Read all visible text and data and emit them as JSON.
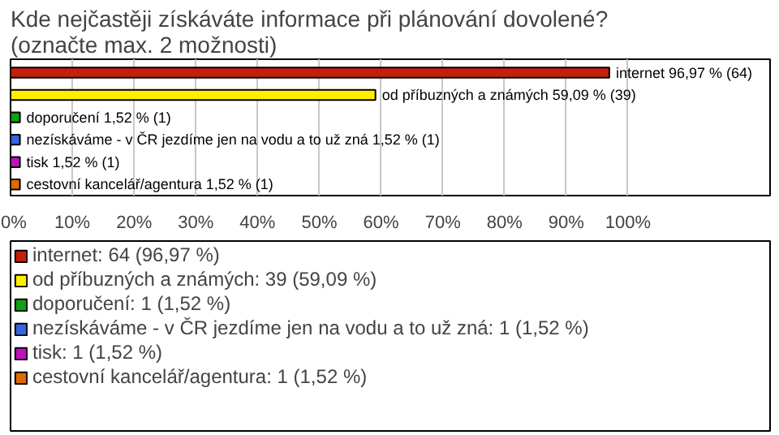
{
  "chart_data": {
    "type": "bar",
    "orientation": "horizontal",
    "stacked": true,
    "title": "Kde nejčastěji získáváte informace při plánování dovolené? (označte max. 2 možnosti)",
    "categories": [
      null,
      null,
      null,
      null,
      null,
      null
    ],
    "xlim": [
      0,
      123
    ],
    "xticks": [
      {
        "value": 0,
        "label": "0%"
      },
      {
        "value": 10,
        "label": "10%"
      },
      {
        "value": 20,
        "label": "20%"
      },
      {
        "value": 30,
        "label": "30%"
      },
      {
        "value": 40,
        "label": "40%"
      },
      {
        "value": 50,
        "label": "50%"
      },
      {
        "value": 60,
        "label": "60%"
      },
      {
        "value": 70,
        "label": "70%"
      },
      {
        "value": 80,
        "label": "80%"
      },
      {
        "value": 90,
        "label": "90%"
      },
      {
        "value": 100,
        "label": "100%"
      }
    ],
    "grid": "x",
    "legend": "bottom",
    "series": [
      {
        "name": "internet: 64 (96,97 %)",
        "color": "#c4200c",
        "values": [
          96.97,
          null,
          null,
          null,
          null,
          null
        ],
        "value_labels": [
          "internet 96,97 % (64)",
          null,
          null,
          null,
          null,
          null
        ]
      },
      {
        "name": "od příbuzných a známých: 39 (59,09 %)",
        "color": "#ffee00",
        "values": [
          null,
          59.09,
          null,
          null,
          null,
          null
        ],
        "value_labels": [
          null,
          "od příbuzných a známých 59,09 % (39)",
          null,
          null,
          null,
          null
        ]
      },
      {
        "name": "doporučení: 1 (1,52 %)",
        "color": "#10a010",
        "values": [
          null,
          null,
          1.52,
          null,
          null,
          null
        ],
        "value_labels": [
          null,
          null,
          "doporučení 1,52 % (1)",
          null,
          null,
          null
        ]
      },
      {
        "name": "nezískáváme - v ČR jezdíme jen na vodu a to už zná: 1 (1,52 %)",
        "color": "#3366e0",
        "values": [
          null,
          null,
          null,
          1.52,
          null,
          null
        ],
        "value_labels": [
          null,
          null,
          null,
          "nezískáváme - v ČR jezdíme jen na vodu a to už zná 1,52 % (1)",
          null,
          null
        ]
      },
      {
        "name": "tisk: 1 (1,52 %)",
        "color": "#c010c0",
        "values": [
          null,
          null,
          null,
          null,
          1.52,
          null
        ],
        "value_labels": [
          null,
          null,
          null,
          null,
          "tisk 1,52 % (1)",
          null
        ]
      },
      {
        "name": "cestovní kancelář/agentura: 1 (1,52 %)",
        "color": "#e06a00",
        "values": [
          null,
          null,
          null,
          null,
          null,
          1.52
        ],
        "value_labels": [
          null,
          null,
          null,
          null,
          null,
          "cestovní kancelář/agentura 1,52 % (1)"
        ]
      }
    ]
  }
}
